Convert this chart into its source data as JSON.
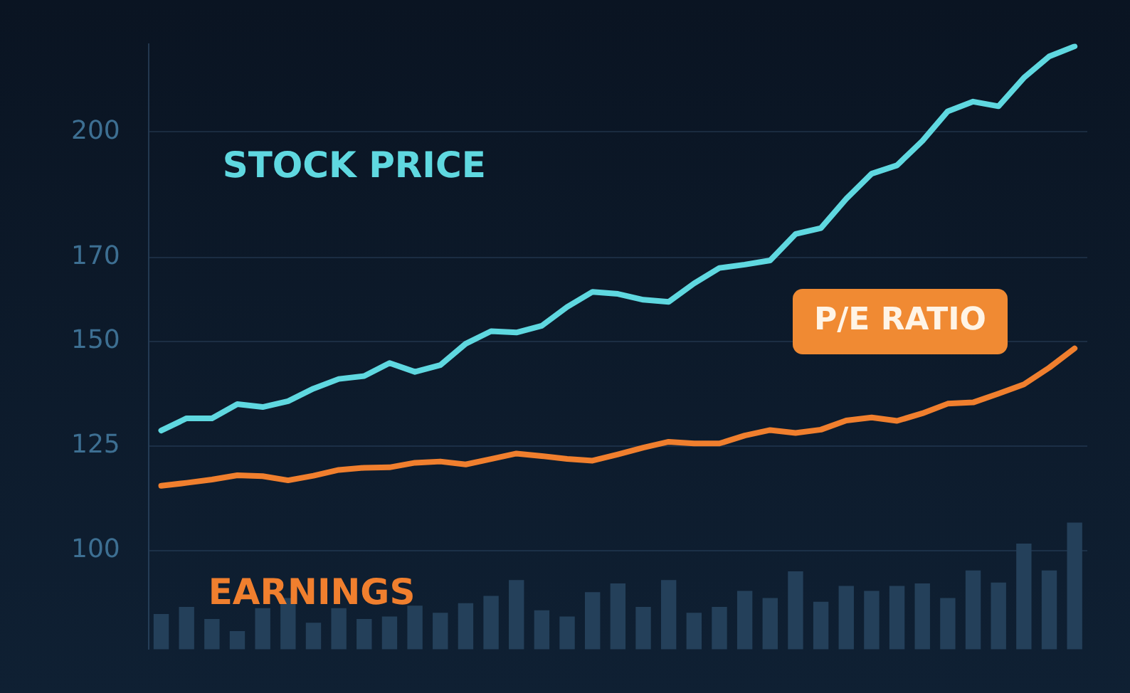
{
  "chart_data": {
    "type": "line",
    "categories": [
      null,
      null,
      null,
      null,
      null,
      null,
      null,
      null,
      null,
      null,
      null,
      null,
      null,
      null,
      null,
      null,
      null,
      null,
      null,
      null,
      null,
      null,
      null,
      null,
      null,
      null,
      null,
      null,
      null,
      null,
      null,
      null,
      null,
      null,
      null,
      null,
      null
    ],
    "series": [
      {
        "name": "STOCK PRICE",
        "color": "#5fd8e0",
        "values": [
          128.7,
          131.6,
          131.6,
          135,
          134.3,
          135.7,
          138.7,
          141,
          141.7,
          144.8,
          142.7,
          144.3,
          149.4,
          152.4,
          152.1,
          153.7,
          158.2,
          161.8,
          161.3,
          159.9,
          159.4,
          163.8,
          167.5,
          168.3,
          169.3,
          175.6,
          177,
          184,
          190,
          192,
          197.8,
          204.9,
          207.2,
          206.1,
          212.9,
          218,
          220.4
        ]
      },
      {
        "name": "EARNINGS",
        "color": "#f07f2e",
        "values": [
          115.5,
          116.2,
          117,
          118,
          117.8,
          116.8,
          117.9,
          119.3,
          119.8,
          119.9,
          121,
          121.3,
          120.6,
          121.9,
          123.2,
          122.6,
          121.9,
          121.5,
          123,
          124.6,
          126,
          125.6,
          125.6,
          127.5,
          128.8,
          128.1,
          128.9,
          131.1,
          131.8,
          131,
          132.8,
          135.1,
          135.4,
          137.5,
          139.7,
          143.7,
          148.3
        ]
      },
      {
        "type": "bar",
        "color": "#24405a",
        "values": [
          84.9,
          86.6,
          83.7,
          80.8,
          86.3,
          88.7,
          82.8,
          86.3,
          83.7,
          84.3,
          86.9,
          85.2,
          87.5,
          89.2,
          93,
          85.8,
          84.3,
          90.1,
          92.2,
          86.6,
          93,
          85.2,
          86.6,
          90.4,
          88.7,
          95.1,
          87.8,
          91.6,
          90.4,
          91.6,
          92.2,
          88.7,
          95.3,
          92.4,
          101.7,
          95.3,
          106.7
        ]
      }
    ],
    "ylim": [
      76.5,
      221
    ],
    "yticks": [
      100,
      125,
      150,
      170,
      200
    ],
    "grid": "y",
    "legend": false,
    "tick_labels": "y",
    "marker": "none",
    "line_style": "solid",
    "annotations": [
      "P/E RATIO"
    ]
  }
}
